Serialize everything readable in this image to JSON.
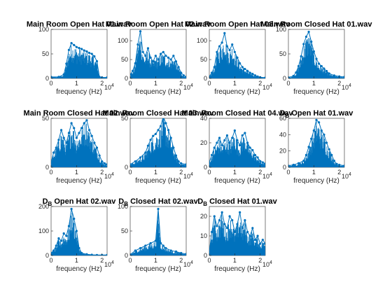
{
  "figure": {
    "background": "#ffffff",
    "line_color": "#0072BD",
    "axis_color": "#262626"
  },
  "chart_data": [
    {
      "type": "line",
      "title": "Main Room Open Hat 01.wav",
      "xlabel": "frequency (Hz)",
      "x_exponent": "4",
      "xlim": [
        0,
        2.2
      ],
      "ylim": [
        0,
        100
      ],
      "xticks": [
        "0",
        "1",
        "2"
      ],
      "yticks": [
        "0",
        "50",
        "100"
      ],
      "series": [
        {
          "x": [
            0,
            0.3,
            0.5,
            0.6,
            0.7,
            0.8,
            0.9,
            1.0,
            1.1,
            1.2,
            1.3,
            1.4,
            1.5,
            1.6,
            1.7,
            1.8,
            1.9,
            2.0,
            2.2
          ],
          "values": [
            3,
            3,
            8,
            30,
            58,
            72,
            68,
            64,
            62,
            60,
            57,
            55,
            52,
            50,
            45,
            35,
            3,
            2,
            2
          ]
        }
      ]
    },
    {
      "type": "line",
      "title": "Main Room Open Hat 02.wav",
      "xlabel": "frequency (Hz)",
      "x_exponent": "4",
      "xlim": [
        0,
        2.2
      ],
      "ylim": [
        0,
        130
      ],
      "xticks": [
        "0",
        "1",
        "2"
      ],
      "yticks": [
        "0",
        "50",
        "100"
      ],
      "series": [
        {
          "x": [
            0,
            0.1,
            0.2,
            0.3,
            0.4,
            0.5,
            0.6,
            0.7,
            0.8,
            0.9,
            1.0,
            1.1,
            1.2,
            1.3,
            1.4,
            1.5,
            1.6,
            1.7,
            1.8,
            1.9,
            2.0,
            2.1,
            2.2
          ],
          "values": [
            10,
            20,
            40,
            90,
            125,
            70,
            60,
            80,
            55,
            45,
            60,
            50,
            65,
            70,
            60,
            55,
            50,
            60,
            45,
            30,
            15,
            8,
            4
          ]
        }
      ]
    },
    {
      "type": "line",
      "title": "Main Room Open Hat 03.wav",
      "xlabel": "frequency (Hz)",
      "x_exponent": "4",
      "xlim": [
        0,
        2.2
      ],
      "ylim": [
        0,
        130
      ],
      "xticks": [
        "0",
        "1",
        "2"
      ],
      "yticks": [
        "0",
        "50",
        "100"
      ],
      "series": [
        {
          "x": [
            0,
            0.1,
            0.2,
            0.3,
            0.4,
            0.5,
            0.6,
            0.7,
            0.8,
            0.9,
            1.0,
            1.1,
            1.2,
            1.3,
            1.4,
            1.5,
            1.6,
            1.7,
            1.8,
            1.9,
            2.0,
            2.2
          ],
          "values": [
            5,
            15,
            30,
            70,
            85,
            95,
            120,
            85,
            75,
            90,
            70,
            55,
            40,
            30,
            25,
            20,
            15,
            12,
            8,
            5,
            3,
            2
          ]
        }
      ]
    },
    {
      "type": "line",
      "title": "Main Room Closed Hat 01.wav",
      "xlabel": "frequency (Hz)",
      "x_exponent": "4",
      "xlim": [
        0,
        2.2
      ],
      "ylim": [
        0,
        100
      ],
      "xticks": [
        "0",
        "1",
        "2"
      ],
      "yticks": [
        "0",
        "50",
        "100"
      ],
      "series": [
        {
          "x": [
            0,
            0.2,
            0.3,
            0.4,
            0.5,
            0.6,
            0.7,
            0.8,
            0.9,
            1.0,
            1.1,
            1.2,
            1.3,
            1.4,
            1.5,
            1.6,
            1.8,
            2.0,
            2.2
          ],
          "values": [
            2,
            5,
            12,
            25,
            45,
            70,
            85,
            95,
            75,
            55,
            40,
            30,
            25,
            20,
            15,
            10,
            6,
            4,
            3
          ]
        }
      ]
    },
    {
      "type": "line",
      "title": "Main Room Closed Hat 02.wav",
      "xlabel": "frequency (Hz)",
      "x_exponent": "4",
      "xlim": [
        0,
        2.2
      ],
      "ylim": [
        0,
        50
      ],
      "xticks": [
        "0",
        "1",
        "2"
      ],
      "yticks": [
        "0",
        "50"
      ],
      "series": [
        {
          "x": [
            0,
            0.1,
            0.2,
            0.3,
            0.4,
            0.5,
            0.6,
            0.7,
            0.8,
            0.9,
            1.0,
            1.1,
            1.2,
            1.3,
            1.4,
            1.5,
            1.6,
            1.7,
            1.8,
            1.9,
            2.0,
            2.1,
            2.2
          ],
          "values": [
            5,
            15,
            20,
            28,
            38,
            30,
            25,
            35,
            45,
            40,
            30,
            35,
            40,
            45,
            48,
            38,
            32,
            25,
            20,
            12,
            6,
            4,
            3
          ]
        }
      ]
    },
    {
      "type": "line",
      "title": "Main Room Closed Hat 03.wav",
      "xlabel": "frequency (Hz)",
      "x_exponent": "4",
      "xlim": [
        0,
        2.2
      ],
      "ylim": [
        0,
        50
      ],
      "xticks": [
        "0",
        "1",
        "2"
      ],
      "yticks": [
        "0",
        "50"
      ],
      "series": [
        {
          "x": [
            0,
            0.2,
            0.4,
            0.6,
            0.7,
            0.8,
            0.9,
            1.0,
            1.1,
            1.2,
            1.3,
            1.4,
            1.5,
            1.6,
            1.7,
            1.8,
            1.9,
            2.0,
            2.2
          ],
          "values": [
            3,
            6,
            10,
            15,
            22,
            28,
            32,
            34,
            38,
            42,
            52,
            45,
            38,
            30,
            20,
            12,
            6,
            4,
            3
          ]
        }
      ]
    },
    {
      "type": "line",
      "title": "Main Room Closed Hat 04.wav",
      "xlabel": "frequency (Hz)",
      "x_exponent": "4",
      "xlim": [
        0,
        2.2
      ],
      "ylim": [
        0,
        40
      ],
      "xticks": [
        "0",
        "1",
        "2"
      ],
      "yticks": [
        "0",
        "20",
        "40"
      ],
      "series": [
        {
          "x": [
            0,
            0.1,
            0.2,
            0.3,
            0.4,
            0.5,
            0.6,
            0.7,
            0.8,
            0.9,
            1.0,
            1.1,
            1.2,
            1.3,
            1.4,
            1.5,
            1.6,
            1.7,
            1.8,
            1.9,
            2.0,
            2.1,
            2.2
          ],
          "values": [
            4,
            10,
            16,
            20,
            24,
            18,
            22,
            26,
            20,
            24,
            30,
            22,
            18,
            26,
            28,
            20,
            16,
            14,
            10,
            8,
            5,
            4,
            3
          ]
        }
      ]
    },
    {
      "type": "line",
      "title": "D  Open Hat 01.wav",
      "title_sub": "B",
      "xlabel": "frequency (Hz)",
      "x_exponent": "4",
      "xlim": [
        0,
        2.2
      ],
      "ylim": [
        0,
        60
      ],
      "xticks": [
        "0",
        "1",
        "2"
      ],
      "yticks": [
        "0",
        "20",
        "40",
        "60"
      ],
      "series": [
        {
          "x": [
            0,
            0.2,
            0.4,
            0.6,
            0.7,
            0.8,
            0.9,
            1.0,
            1.1,
            1.2,
            1.3,
            1.4,
            1.5,
            1.6,
            1.7,
            1.8,
            1.9,
            2.0,
            2.2
          ],
          "values": [
            2,
            3,
            5,
            8,
            15,
            25,
            35,
            45,
            58,
            55,
            45,
            40,
            30,
            22,
            15,
            8,
            4,
            3,
            2
          ]
        }
      ]
    },
    {
      "type": "line",
      "title": "D  Open Hat 02.wav",
      "title_sub": "B",
      "xlabel": "frequency (Hz)",
      "x_exponent": "4",
      "xlim": [
        0,
        2.2
      ],
      "ylim": [
        0,
        200
      ],
      "xticks": [
        "0",
        "1",
        "2"
      ],
      "yticks": [
        "0",
        "100",
        "200"
      ],
      "series": [
        {
          "x": [
            0,
            0.1,
            0.2,
            0.3,
            0.4,
            0.5,
            0.6,
            0.7,
            0.8,
            0.9,
            1.0,
            1.1,
            1.2,
            1.4,
            1.6,
            1.8,
            2.0,
            2.2
          ],
          "values": [
            10,
            20,
            40,
            70,
            60,
            90,
            80,
            120,
            190,
            150,
            100,
            30,
            10,
            5,
            3,
            2,
            2,
            2
          ]
        }
      ]
    },
    {
      "type": "line",
      "title": "D  Closed Hat 02.wav",
      "title_sub": "B",
      "xlabel": "frequency (Hz)",
      "x_exponent": "4",
      "xlim": [
        0,
        2.2
      ],
      "ylim": [
        0,
        100
      ],
      "xticks": [
        "0",
        "1",
        "2"
      ],
      "yticks": [
        "0",
        "50",
        "100"
      ],
      "series": [
        {
          "x": [
            0,
            0.2,
            0.4,
            0.6,
            0.8,
            1.0,
            1.1,
            1.2,
            1.3,
            1.4,
            1.6,
            1.8,
            2.0,
            2.2
          ],
          "values": [
            2,
            10,
            15,
            20,
            25,
            30,
            95,
            25,
            20,
            15,
            10,
            8,
            5,
            3
          ]
        }
      ]
    },
    {
      "type": "line",
      "title": "D  Closed Hat 01.wav",
      "title_sub": "B",
      "xlabel": "frequency (Hz)",
      "x_exponent": "4",
      "xlim": [
        0,
        2.2
      ],
      "ylim": [
        0,
        25
      ],
      "xticks": [
        "0",
        "1",
        "2"
      ],
      "yticks": [
        "0",
        "10",
        "20"
      ],
      "series": [
        {
          "x": [
            0,
            0.1,
            0.2,
            0.3,
            0.4,
            0.5,
            0.6,
            0.7,
            0.8,
            0.9,
            1.0,
            1.1,
            1.2,
            1.3,
            1.4,
            1.5,
            1.6,
            1.7,
            1.8,
            1.9,
            2.0,
            2.1,
            2.2
          ],
          "values": [
            2,
            12,
            20,
            15,
            18,
            22,
            16,
            14,
            20,
            18,
            12,
            16,
            22,
            14,
            18,
            12,
            10,
            14,
            8,
            10,
            6,
            8,
            6
          ]
        }
      ]
    }
  ]
}
